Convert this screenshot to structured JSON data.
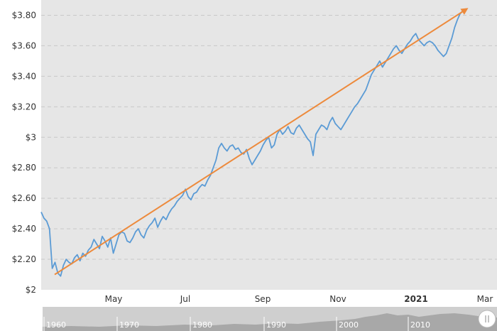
{
  "chart_data": {
    "type": "line",
    "title": "",
    "xlabel": "",
    "ylabel": "",
    "ylim": [
      2.0,
      3.9
    ],
    "y_ticks": [
      {
        "value": 2.0,
        "label": "$2"
      },
      {
        "value": 2.2,
        "label": "$2.20"
      },
      {
        "value": 2.4,
        "label": "$2.40"
      },
      {
        "value": 2.6,
        "label": "$2.60"
      },
      {
        "value": 2.8,
        "label": "$2.80"
      },
      {
        "value": 3.0,
        "label": "$3"
      },
      {
        "value": 3.2,
        "label": "$3.20"
      },
      {
        "value": 3.4,
        "label": "$3.40"
      },
      {
        "value": 3.6,
        "label": "$3.60"
      },
      {
        "value": 3.8,
        "label": "$3.80"
      }
    ],
    "x_ticks": [
      {
        "label": "May",
        "bold": false
      },
      {
        "label": "Jul",
        "bold": false
      },
      {
        "label": "Sep",
        "bold": false
      },
      {
        "label": "Nov",
        "bold": false
      },
      {
        "label": "2021",
        "bold": true
      },
      {
        "label": "Mar",
        "bold": false
      }
    ],
    "grid": true,
    "series": [
      {
        "color": "#5b9bd5",
        "values": [
          2.51,
          2.47,
          2.45,
          2.4,
          2.14,
          2.18,
          2.11,
          2.09,
          2.16,
          2.2,
          2.18,
          2.17,
          2.21,
          2.23,
          2.19,
          2.24,
          2.22,
          2.26,
          2.28,
          2.33,
          2.3,
          2.27,
          2.35,
          2.32,
          2.28,
          2.34,
          2.24,
          2.3,
          2.36,
          2.38,
          2.37,
          2.32,
          2.31,
          2.34,
          2.38,
          2.4,
          2.36,
          2.34,
          2.39,
          2.42,
          2.44,
          2.47,
          2.41,
          2.45,
          2.48,
          2.46,
          2.5,
          2.53,
          2.55,
          2.58,
          2.6,
          2.62,
          2.66,
          2.61,
          2.59,
          2.63,
          2.64,
          2.67,
          2.69,
          2.68,
          2.72,
          2.75,
          2.8,
          2.85,
          2.93,
          2.96,
          2.93,
          2.91,
          2.94,
          2.95,
          2.92,
          2.93,
          2.9,
          2.89,
          2.92,
          2.86,
          2.82,
          2.85,
          2.88,
          2.91,
          2.95,
          2.98,
          3.0,
          2.93,
          2.95,
          3.02,
          3.05,
          3.02,
          3.04,
          3.07,
          3.03,
          3.02,
          3.06,
          3.08,
          3.05,
          3.02,
          2.99,
          2.97,
          2.88,
          3.02,
          3.05,
          3.08,
          3.07,
          3.05,
          3.1,
          3.13,
          3.09,
          3.07,
          3.05,
          3.08,
          3.11,
          3.14,
          3.17,
          3.2,
          3.22,
          3.25,
          3.28,
          3.31,
          3.36,
          3.41,
          3.44,
          3.47,
          3.5,
          3.46,
          3.49,
          3.52,
          3.55,
          3.58,
          3.6,
          3.57,
          3.55,
          3.58,
          3.61,
          3.63,
          3.66,
          3.68,
          3.64,
          3.62,
          3.6,
          3.62,
          3.63,
          3.62,
          3.6,
          3.57,
          3.55,
          3.53,
          3.55,
          3.6,
          3.65,
          3.72,
          3.77,
          3.81,
          3.83
        ]
      }
    ],
    "trend_arrow": {
      "color": "#ed8a3c",
      "from": 2.1,
      "to": 3.84
    },
    "navigator": {
      "labels": [
        "1960",
        "1970",
        "1980",
        "1990",
        "2000",
        "2010"
      ],
      "handle_icon": "grip-handle-icon"
    },
    "colors": {
      "plot_bg": "#e6e6e6",
      "grid": "#c8c8c8",
      "axis_text": "#333333",
      "navigator_bg": "#cfcfcf",
      "navigator_area": "#a8a8a8",
      "navigator_text": "#ffffff"
    }
  }
}
